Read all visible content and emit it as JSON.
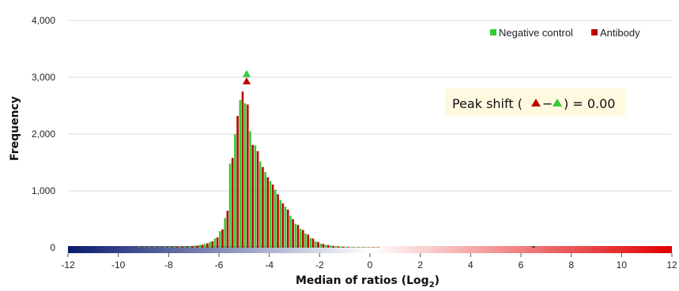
{
  "chart_data": {
    "type": "bar",
    "xlabel": "Median of ratios (Log",
    "xlabel_sub": "2",
    "xlabel_close": ")",
    "ylabel": "Frequency",
    "xlim": [
      -12,
      12
    ],
    "ylim": [
      0,
      4000
    ],
    "x_ticks": [
      -12,
      -10,
      -8,
      -6,
      -4,
      -2,
      0,
      2,
      4,
      6,
      8,
      10,
      12
    ],
    "y_ticks": [
      0,
      1000,
      2000,
      3000,
      4000
    ],
    "y_tick_labels": [
      "0",
      "1,000",
      "2,000",
      "3,000",
      "4,000"
    ],
    "grid": true,
    "legend_position": "top-right",
    "bin_width": 0.2,
    "x": [
      -9.2,
      -9.0,
      -8.8,
      -8.6,
      -8.4,
      -8.2,
      -8.0,
      -7.8,
      -7.6,
      -7.4,
      -7.2,
      -7.0,
      -6.8,
      -6.6,
      -6.4,
      -6.2,
      -6.0,
      -5.8,
      -5.6,
      -5.4,
      -5.2,
      -5.0,
      -4.8,
      -4.6,
      -4.4,
      -4.2,
      -4.0,
      -3.8,
      -3.6,
      -3.4,
      -3.2,
      -3.0,
      -2.8,
      -2.6,
      -2.4,
      -2.2,
      -2.0,
      -1.8,
      -1.6,
      -1.4,
      -1.2,
      -1.0,
      -0.8,
      -0.6,
      -0.4,
      -0.2,
      0.0,
      0.2
    ],
    "series": [
      {
        "name": "Negative control",
        "color": "#33cc33",
        "values": [
          2,
          3,
          5,
          6,
          8,
          10,
          12,
          15,
          18,
          22,
          28,
          36,
          50,
          70,
          100,
          160,
          290,
          520,
          1480,
          2000,
          2600,
          2540,
          2050,
          1800,
          1520,
          1330,
          1170,
          1020,
          840,
          720,
          560,
          420,
          330,
          250,
          170,
          110,
          70,
          50,
          35,
          25,
          18,
          12,
          9,
          6,
          4,
          3,
          2,
          1
        ]
      },
      {
        "name": "Antibody",
        "color": "#c00000",
        "values": [
          2,
          3,
          5,
          6,
          8,
          10,
          12,
          15,
          18,
          22,
          28,
          36,
          50,
          75,
          110,
          180,
          320,
          650,
          1580,
          2320,
          2750,
          2520,
          1810,
          1700,
          1420,
          1240,
          1110,
          940,
          780,
          670,
          500,
          400,
          310,
          230,
          160,
          100,
          65,
          45,
          30,
          22,
          16,
          11,
          8,
          5,
          4,
          3,
          2,
          1
        ]
      }
    ],
    "peak_markers": [
      {
        "series": "Negative control",
        "x": -5.0,
        "y": 3060,
        "color": "#33cc33"
      },
      {
        "series": "Antibody",
        "x": -5.0,
        "y": 2930,
        "color": "#c00000"
      }
    ],
    "annotation": {
      "prefix": "Peak shift (",
      "dash": "−",
      "suffix": ") = 0.00",
      "background": "#fff9e0"
    },
    "gradient_bar": {
      "colors": [
        "#0a1a6e",
        "#ffffff",
        "#e00000"
      ],
      "extra_marker_x": 6.5
    }
  }
}
